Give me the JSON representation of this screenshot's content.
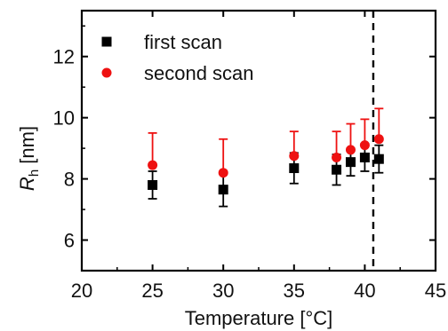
{
  "chart_data": {
    "type": "scatter",
    "title": "",
    "xlabel": "Temperature [°C]",
    "ylabel_main": "R",
    "ylabel_sub": "h",
    "ylabel_unit": " [nm]",
    "xlim": [
      20,
      45
    ],
    "ylim": [
      5,
      13.5
    ],
    "xticks": [
      20,
      25,
      30,
      35,
      40,
      45
    ],
    "yticks": [
      6,
      8,
      10,
      12
    ],
    "xtick_labels": [
      "20",
      "25",
      "30",
      "35",
      "40",
      "45"
    ],
    "ytick_labels": [
      "6",
      "8",
      "10",
      "12"
    ],
    "grid": false,
    "legend_position": "top-left",
    "vline_x": 40.6,
    "series": [
      {
        "name": "first scan",
        "marker": "square",
        "color": "#000000",
        "x": [
          25,
          30,
          35,
          38,
          39,
          40,
          41
        ],
        "y": [
          7.8,
          7.65,
          8.35,
          8.3,
          8.55,
          8.7,
          8.65
        ],
        "yerr_low": [
          0.45,
          0.55,
          0.5,
          0.5,
          0.45,
          0.45,
          0.45
        ],
        "yerr_high": [
          0.45,
          0.55,
          0.5,
          0.5,
          0.45,
          0.45,
          0.45
        ]
      },
      {
        "name": "second scan",
        "marker": "circle",
        "color": "#ee1111",
        "x": [
          25,
          30,
          35,
          38,
          39,
          40,
          41
        ],
        "y": [
          8.45,
          8.2,
          8.75,
          8.7,
          8.95,
          9.1,
          9.3
        ],
        "yerr_low": [
          0,
          0,
          0,
          0,
          0,
          0,
          0
        ],
        "yerr_high": [
          1.05,
          1.1,
          0.8,
          0.85,
          0.85,
          0.85,
          1.0
        ]
      }
    ]
  }
}
